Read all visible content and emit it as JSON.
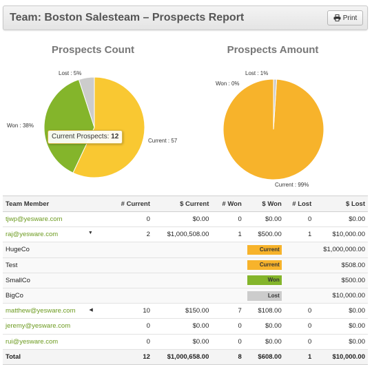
{
  "header": {
    "title": "Team: Boston Salesteam – Prospects Report",
    "print_label": "Print"
  },
  "colors": {
    "current": "#f7b32b",
    "current_count": "#f9c832",
    "won": "#84b52b",
    "lost": "#cccccc",
    "member_link": "#6b9a1e"
  },
  "chart_data": [
    {
      "type": "pie",
      "title": "Prospects Count",
      "slices": [
        {
          "label": "Current",
          "value": 57,
          "display": "Current : 57",
          "color": "#f9c832"
        },
        {
          "label": "Won",
          "value": 38,
          "display": "Won : 38%",
          "color": "#84b52b"
        },
        {
          "label": "Lost",
          "value": 5,
          "display": "Lost : 5%",
          "color": "#cccccc"
        }
      ],
      "tooltip": {
        "label": "Current Prospects:",
        "value": "12"
      }
    },
    {
      "type": "pie",
      "title": "Prospects Amount",
      "slices": [
        {
          "label": "Current",
          "value": 99,
          "display": "Current : 99%",
          "color": "#f7b32b"
        },
        {
          "label": "Won",
          "value": 0,
          "display": "Won : 0%",
          "color": "#84b52b"
        },
        {
          "label": "Lost",
          "value": 1,
          "display": "Lost : 1%",
          "color": "#cccccc"
        }
      ]
    }
  ],
  "table": {
    "columns": [
      "Team Member",
      "# Current",
      "$ Current",
      "# Won",
      "$ Won",
      "# Lost",
      "$ Lost"
    ],
    "rows": [
      {
        "member": "tjwp@yesware.com",
        "current_n": "0",
        "current_amt": "$0.00",
        "won_n": "0",
        "won_amt": "$0.00",
        "lost_n": "0",
        "lost_amt": "$0.00"
      },
      {
        "member": "raj@yesware.com",
        "toggle": "▼",
        "current_n": "2",
        "current_amt": "$1,000,508.00",
        "won_n": "1",
        "won_amt": "$500.00",
        "lost_n": "1",
        "lost_amt": "$10,000.00"
      },
      {
        "member": "matthew@yesware.com",
        "toggle": "◀",
        "current_n": "10",
        "current_amt": "$150.00",
        "won_n": "7",
        "won_amt": "$108.00",
        "lost_n": "0",
        "lost_amt": "$0.00"
      },
      {
        "member": "jeremy@yesware.com",
        "current_n": "0",
        "current_amt": "$0.00",
        "won_n": "0",
        "won_amt": "$0.00",
        "lost_n": "0",
        "lost_amt": "$0.00"
      },
      {
        "member": "rui@yesware.com",
        "current_n": "0",
        "current_amt": "$0.00",
        "won_n": "0",
        "won_amt": "$0.00",
        "lost_n": "0",
        "lost_amt": "$0.00"
      }
    ],
    "sub_rows": [
      {
        "name": "HugeCo",
        "status": "Current",
        "amount": "$1,000,000.00"
      },
      {
        "name": "Test",
        "status": "Current",
        "amount": "$508.00"
      },
      {
        "name": "SmallCo",
        "status": "Won",
        "amount": "$500.00"
      },
      {
        "name": "BigCo",
        "status": "Lost",
        "amount": "$10,000.00"
      }
    ],
    "total": {
      "label": "Total",
      "current_n": "12",
      "current_amt": "$1,000,658.00",
      "won_n": "8",
      "won_amt": "$608.00",
      "lost_n": "1",
      "lost_amt": "$10,000.00"
    }
  }
}
